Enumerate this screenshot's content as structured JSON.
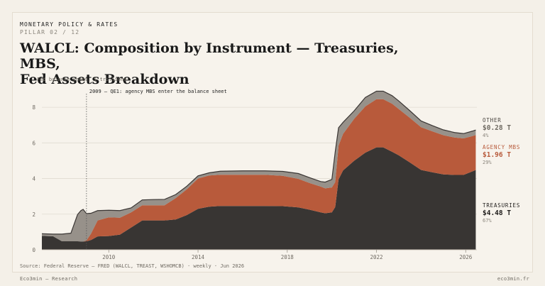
{
  "header": {
    "kicker": "MONETARY POLICY & RATES",
    "pillar": "PILLAR 02 / 12",
    "title_line1": "WALCL: Composition by Instrument — Treasuries, MBS,",
    "title_line2": "Fed Assets Breakdown"
  },
  "footer": {
    "brand": "Eco3min — Research",
    "site": "eco3min.fr"
  },
  "colors": {
    "treasuries": "#383533",
    "mbs": "#b85a3b",
    "other": "#97918a",
    "top_line": "#3a3634",
    "grid": "#e0dbd1",
    "background": "#f4f0e8"
  },
  "chart_data": {
    "type": "area",
    "stacked": true,
    "ylabel": "Fed balance sheet, $ trillions",
    "source": "Source: Federal Reserve — FRED (WALCL, TREAST, WSHOMCB) · weekly · Jun 2026",
    "ylim": [
      0,
      9
    ],
    "xlim": [
      2007.0,
      2026.5
    ],
    "y_ticks": [
      0,
      2,
      4,
      6,
      8
    ],
    "x_ticks": [
      2010,
      2014,
      2018,
      2022,
      2026
    ],
    "annotation": {
      "x": 2009.0,
      "text": "2009 — QE1: agency MBS enter the balance sheet"
    },
    "x": [
      2007.0,
      2007.5,
      2007.9,
      2008.3,
      2008.6,
      2008.75,
      2008.85,
      2009.0,
      2009.2,
      2009.5,
      2010.0,
      2010.5,
      2011.0,
      2011.5,
      2012.0,
      2012.5,
      2013.0,
      2013.5,
      2014.0,
      2014.5,
      2015.0,
      2016.0,
      2017.0,
      2017.8,
      2018.5,
      2019.0,
      2019.5,
      2019.7,
      2020.0,
      2020.15,
      2020.3,
      2020.5,
      2021.0,
      2021.5,
      2022.0,
      2022.3,
      2022.7,
      2023.0,
      2023.5,
      2024.0,
      2024.5,
      2025.0,
      2025.5,
      2025.9,
      2026.3,
      2026.45
    ],
    "series": [
      {
        "name": "TREASURIES",
        "legend_label": "TREASURIES",
        "value_label": "$4.48 T",
        "share_label": "67%",
        "values": [
          0.78,
          0.76,
          0.48,
          0.48,
          0.48,
          0.47,
          0.47,
          0.48,
          0.55,
          0.75,
          0.77,
          0.85,
          1.25,
          1.65,
          1.65,
          1.65,
          1.7,
          1.95,
          2.3,
          2.42,
          2.46,
          2.46,
          2.46,
          2.45,
          2.38,
          2.25,
          2.1,
          2.05,
          2.1,
          2.4,
          3.95,
          4.45,
          5.0,
          5.45,
          5.75,
          5.75,
          5.5,
          5.3,
          4.9,
          4.48,
          4.35,
          4.23,
          4.2,
          4.2,
          4.4,
          4.48
        ]
      },
      {
        "name": "AGENCY MBS",
        "legend_label": "AGENCY MBS",
        "value_label": "$1.96 T",
        "share_label": "29%",
        "values": [
          0,
          0,
          0,
          0,
          0,
          0,
          0,
          0.05,
          0.35,
          0.9,
          1.05,
          0.95,
          0.85,
          0.85,
          0.85,
          0.85,
          1.2,
          1.45,
          1.7,
          1.75,
          1.75,
          1.75,
          1.75,
          1.7,
          1.6,
          1.5,
          1.45,
          1.4,
          1.4,
          1.4,
          1.9,
          2.05,
          2.35,
          2.6,
          2.7,
          2.7,
          2.7,
          2.6,
          2.5,
          2.4,
          2.3,
          2.2,
          2.1,
          2.05,
          1.98,
          1.96
        ]
      },
      {
        "name": "OTHER",
        "legend_label": "OTHER",
        "value_label": "$0.28 T",
        "share_label": "4%",
        "values": [
          0.12,
          0.12,
          0.4,
          0.45,
          1.5,
          1.73,
          1.8,
          1.5,
          1.15,
          0.55,
          0.4,
          0.4,
          0.25,
          0.3,
          0.32,
          0.33,
          0.2,
          0.17,
          0.15,
          0.15,
          0.2,
          0.22,
          0.22,
          0.25,
          0.3,
          0.3,
          0.28,
          0.35,
          0.45,
          1.7,
          1.0,
          0.65,
          0.45,
          0.5,
          0.45,
          0.45,
          0.45,
          0.45,
          0.4,
          0.35,
          0.32,
          0.3,
          0.28,
          0.27,
          0.28,
          0.28
        ]
      }
    ]
  }
}
